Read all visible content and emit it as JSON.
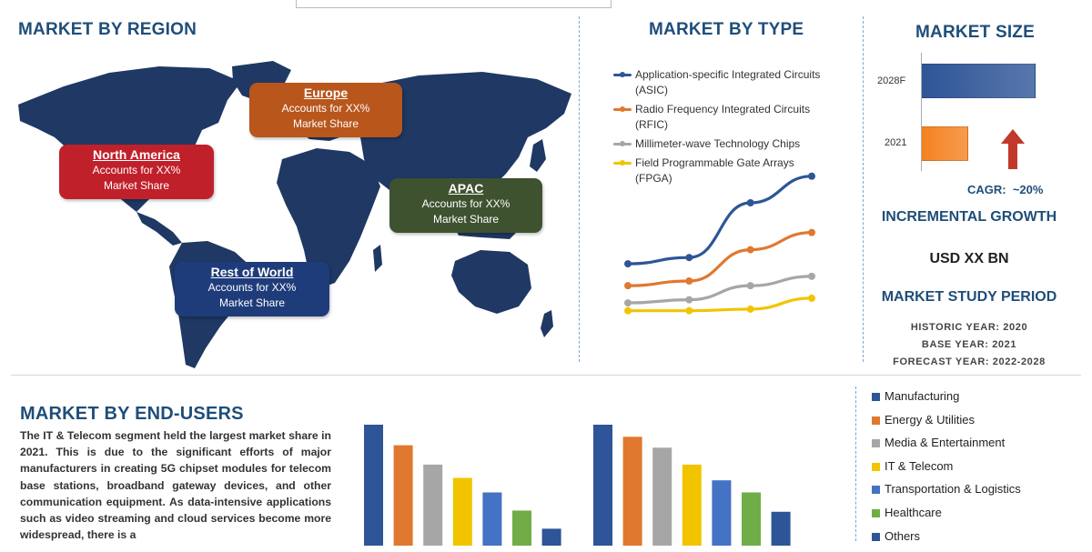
{
  "sections": {
    "region_title": "MARKET BY REGION",
    "type_title": "MARKET BY TYPE",
    "size_title": "MARKET SIZE",
    "end_users_title": "MARKET BY END-USERS"
  },
  "regions": [
    {
      "name": "North America",
      "line1": "Accounts for XX%",
      "line2": "Market Share",
      "color": "#c0202a"
    },
    {
      "name": "Europe",
      "line1": "Accounts for XX%",
      "line2": "Market Share",
      "color": "#b8561c"
    },
    {
      "name": "APAC",
      "line1": "Accounts for XX%",
      "line2": "Market Share",
      "color": "#3e5230"
    },
    {
      "name": "Rest of World",
      "line1": "Accounts for XX%",
      "line2": "Market Share",
      "color": "#1f3c7a"
    }
  ],
  "map_color": "#1f3864",
  "market_size": {
    "cagr_label": "CAGR:",
    "cagr_value": "~20%",
    "incremental_title": "INCREMENTAL GROWTH",
    "incremental_value": "USD XX BN",
    "study_title": "MARKET STUDY PERIOD",
    "historic": "HISTORIC YEAR: 2020",
    "base": "BASE YEAR: 2021",
    "forecast": "FORECAST YEAR: 2022-2028",
    "arrow_icon": "up-arrow-icon",
    "arrow_color": "#c0392b"
  },
  "end_users_text": "The IT & Telecom segment held the largest market share in 2021. This is due to the significant efforts of major manufacturers in creating 5G chipset modules for telecom base stations, broadband gateway devices, and other communication equipment. As data-intensive applications such as video streaming and cloud services become more widespread, there is a",
  "chart_data": [
    {
      "type": "line",
      "x": [
        1,
        2,
        3,
        4
      ],
      "ylim": [
        0,
        100
      ],
      "series": [
        {
          "name": "Application-specific Integrated Circuits (ASIC)",
          "color": "#2e5597",
          "values": [
            36,
            40,
            75,
            92
          ]
        },
        {
          "name": "Radio Frequency Integrated Circuits (RFIC)",
          "color": "#e0782f",
          "values": [
            22,
            25,
            45,
            56
          ]
        },
        {
          "name": "Millimeter-wave Technology Chips",
          "color": "#a6a6a6",
          "values": [
            11,
            13,
            22,
            28
          ]
        },
        {
          "name": "Field Programmable Gate Arrays (FPGA)",
          "color": "#f2c400",
          "values": [
            6,
            6,
            7,
            14
          ]
        }
      ]
    },
    {
      "type": "bar",
      "orientation": "horizontal",
      "categories": [
        "2028F",
        "2021"
      ],
      "values": [
        100,
        40
      ],
      "colors": [
        "#2e5597",
        "#f58220"
      ]
    },
    {
      "type": "bar",
      "groups": 2,
      "series": [
        {
          "name": "Manufacturing",
          "color": "#2e5597",
          "values": [
            100,
            100
          ]
        },
        {
          "name": "Energy & Utilities",
          "color": "#e0782f",
          "values": [
            83,
            90
          ]
        },
        {
          "name": "Media & Entertainment",
          "color": "#a6a6a6",
          "values": [
            67,
            81
          ]
        },
        {
          "name": "IT & Telecom",
          "color": "#f2c400",
          "values": [
            56,
            67
          ]
        },
        {
          "name": "Transportation & Logistics",
          "color": "#4472c4",
          "values": [
            44,
            54
          ]
        },
        {
          "name": "Healthcare",
          "color": "#70ad47",
          "values": [
            29,
            44
          ]
        },
        {
          "name": "Others",
          "color": "#2e5597",
          "values": [
            14,
            28
          ]
        }
      ]
    }
  ]
}
